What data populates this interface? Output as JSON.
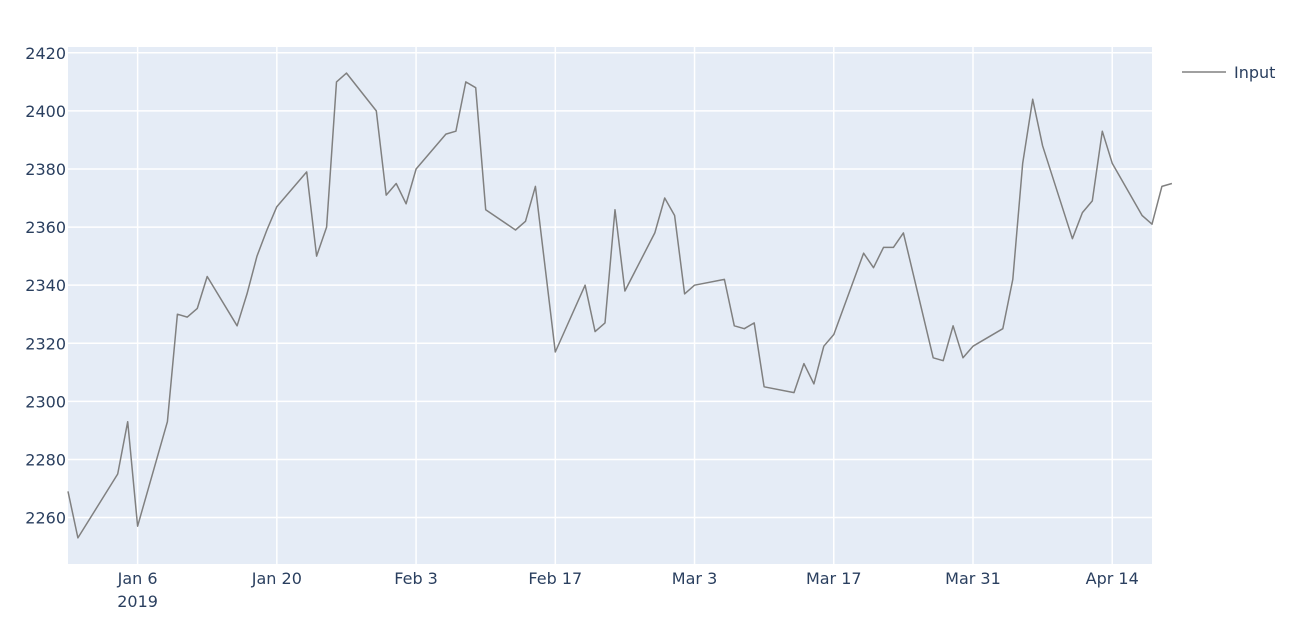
{
  "chart_data": {
    "type": "line",
    "title": "",
    "xlabel": "",
    "ylabel": "",
    "xlim": [
      "2018-12-30",
      "2019-04-18"
    ],
    "ylim": [
      2244,
      2422
    ],
    "x_ticks": [
      {
        "date": "2019-01-06",
        "label": "Jan 6",
        "sublabel": "2019"
      },
      {
        "date": "2019-01-20",
        "label": "Jan 20"
      },
      {
        "date": "2019-02-03",
        "label": "Feb 3"
      },
      {
        "date": "2019-02-17",
        "label": "Feb 17"
      },
      {
        "date": "2019-03-03",
        "label": "Mar 3"
      },
      {
        "date": "2019-03-17",
        "label": "Mar 17"
      },
      {
        "date": "2019-03-31",
        "label": "Mar 31"
      },
      {
        "date": "2019-04-14",
        "label": "Apr 14"
      }
    ],
    "y_ticks": [
      2260,
      2280,
      2300,
      2320,
      2340,
      2360,
      2380,
      2400,
      2420
    ],
    "grid": true,
    "legend": {
      "position": "top-right"
    },
    "colors": {
      "plot_bg": "#e5ecf6",
      "grid": "#ffffff",
      "line": "#808080",
      "text": "#2a3f5f"
    },
    "series": [
      {
        "name": "Input",
        "points": [
          [
            "2018-12-30",
            2269
          ],
          [
            "2018-12-31",
            2253
          ],
          [
            "2019-01-04",
            2275
          ],
          [
            "2019-01-05",
            2293
          ],
          [
            "2019-01-06",
            2257
          ],
          [
            "2019-01-09",
            2293
          ],
          [
            "2019-01-10",
            2330
          ],
          [
            "2019-01-11",
            2329
          ],
          [
            "2019-01-12",
            2332
          ],
          [
            "2019-01-13",
            2343
          ],
          [
            "2019-01-16",
            2326
          ],
          [
            "2019-01-17",
            2337
          ],
          [
            "2019-01-18",
            2350
          ],
          [
            "2019-01-19",
            2359
          ],
          [
            "2019-01-20",
            2367
          ],
          [
            "2019-01-23",
            2379
          ],
          [
            "2019-01-24",
            2350
          ],
          [
            "2019-01-25",
            2360
          ],
          [
            "2019-01-26",
            2410
          ],
          [
            "2019-01-27",
            2413
          ],
          [
            "2019-01-30",
            2400
          ],
          [
            "2019-01-31",
            2371
          ],
          [
            "2019-02-01",
            2375
          ],
          [
            "2019-02-02",
            2368
          ],
          [
            "2019-02-03",
            2380
          ],
          [
            "2019-02-06",
            2392
          ],
          [
            "2019-02-07",
            2393
          ],
          [
            "2019-02-08",
            2410
          ],
          [
            "2019-02-09",
            2408
          ],
          [
            "2019-02-10",
            2366
          ],
          [
            "2019-02-13",
            2359
          ],
          [
            "2019-02-14",
            2362
          ],
          [
            "2019-02-15",
            2374
          ],
          [
            "2019-02-17",
            2317
          ],
          [
            "2019-02-20",
            2340
          ],
          [
            "2019-02-21",
            2324
          ],
          [
            "2019-02-22",
            2327
          ],
          [
            "2019-02-23",
            2366
          ],
          [
            "2019-02-24",
            2338
          ],
          [
            "2019-02-27",
            2358
          ],
          [
            "2019-02-28",
            2370
          ],
          [
            "2019-03-01",
            2364
          ],
          [
            "2019-03-02",
            2337
          ],
          [
            "2019-03-03",
            2340
          ],
          [
            "2019-03-06",
            2342
          ],
          [
            "2019-03-07",
            2326
          ],
          [
            "2019-03-08",
            2325
          ],
          [
            "2019-03-09",
            2327
          ],
          [
            "2019-03-10",
            2305
          ],
          [
            "2019-03-13",
            2303
          ],
          [
            "2019-03-14",
            2313
          ],
          [
            "2019-03-15",
            2306
          ],
          [
            "2019-03-16",
            2319
          ],
          [
            "2019-03-17",
            2323
          ],
          [
            "2019-03-20",
            2351
          ],
          [
            "2019-03-21",
            2346
          ],
          [
            "2019-03-22",
            2353
          ],
          [
            "2019-03-23",
            2353
          ],
          [
            "2019-03-24",
            2358
          ],
          [
            "2019-03-27",
            2315
          ],
          [
            "2019-03-28",
            2314
          ],
          [
            "2019-03-29",
            2326
          ],
          [
            "2019-03-30",
            2315
          ],
          [
            "2019-03-31",
            2319
          ],
          [
            "2019-04-03",
            2325
          ],
          [
            "2019-04-04",
            2342
          ],
          [
            "2019-04-05",
            2382
          ],
          [
            "2019-04-06",
            2404
          ],
          [
            "2019-04-07",
            2388
          ],
          [
            "2019-04-10",
            2356
          ],
          [
            "2019-04-11",
            2365
          ],
          [
            "2019-04-12",
            2369
          ],
          [
            "2019-04-13",
            2393
          ],
          [
            "2019-04-14",
            2382
          ],
          [
            "2019-04-17",
            2364
          ],
          [
            "2019-04-18",
            2361
          ],
          [
            "2019-04-19",
            2374
          ],
          [
            "2019-04-20",
            2375
          ]
        ]
      }
    ]
  }
}
